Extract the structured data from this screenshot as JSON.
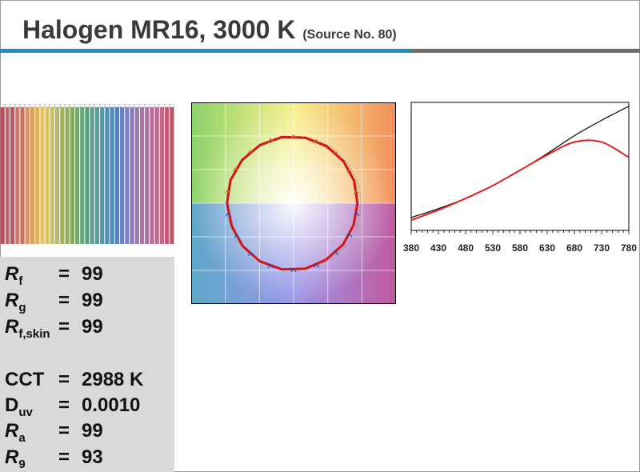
{
  "header": {
    "title": "Halogen MR16, 3000 K",
    "subtitle": "(Source No. 80)"
  },
  "swatch_colors": [
    "#c44a5e",
    "#c9646a",
    "#b85a60",
    "#d4786a",
    "#c8725a",
    "#d6966a",
    "#dca05e",
    "#e2b25a",
    "#e8c266",
    "#dcc05a",
    "#c8c25c",
    "#b8b86a",
    "#a4b25a",
    "#94ae66",
    "#86a85c",
    "#78a872",
    "#6aa67a",
    "#5aa07a",
    "#5aa494",
    "#52a0a0",
    "#4e98a8",
    "#4a90b2",
    "#5088b8",
    "#5a80bc",
    "#6a80c0",
    "#7a80c0",
    "#8a7ab8",
    "#9a78b4",
    "#a874ae",
    "#b070a6",
    "#b86c9c",
    "#bc6a90",
    "#c06888",
    "#c45c74",
    "#bc5468"
  ],
  "metrics": {
    "rf": {
      "label": "R",
      "sub": "f",
      "eq": "=",
      "value": "99"
    },
    "rg": {
      "label": "R",
      "sub": "g",
      "eq": "=",
      "value": "99"
    },
    "rfs": {
      "label": "R",
      "sub": "f,skin",
      "eq": "=",
      "value": "99"
    },
    "cct": {
      "label": "CCT",
      "eq": "=",
      "value": "2988 K"
    },
    "duv": {
      "label": "D",
      "sub": "uv",
      "eq": "=",
      "value": "0.0010"
    },
    "ra": {
      "label": "R",
      "sub": "a",
      "eq": "=",
      "value": "99"
    },
    "r9": {
      "label": "R",
      "sub": "9",
      "eq": "=",
      "value": "93"
    }
  },
  "chart_data": [
    {
      "type": "line",
      "chart": "color vector graphic",
      "series": [
        {
          "values_deg_radius": [
            [
              0,
              0.95
            ],
            [
              20,
              0.96
            ],
            [
              40,
              0.97
            ],
            [
              60,
              0.98
            ],
            [
              80,
              0.99
            ],
            [
              100,
              1.0
            ],
            [
              120,
              1.0
            ],
            [
              140,
              1.0
            ],
            [
              160,
              1.0
            ],
            [
              180,
              0.99
            ],
            [
              200,
              0.98
            ],
            [
              220,
              0.99
            ],
            [
              240,
              1.0
            ],
            [
              260,
              1.0
            ],
            [
              280,
              0.99
            ],
            [
              300,
              0.97
            ],
            [
              320,
              0.96
            ],
            [
              340,
              0.95
            ],
            [
              360,
              0.95
            ]
          ]
        }
      ],
      "grid": true
    },
    {
      "type": "line",
      "x": [
        380,
        430,
        480,
        530,
        580,
        630,
        680,
        730,
        780
      ],
      "xticks": [
        "380",
        "430",
        "480",
        "530",
        "580",
        "630",
        "680",
        "730",
        "780"
      ],
      "xlim": [
        380,
        780
      ],
      "series": [
        {
          "color": "#000000",
          "values": [
            0.1,
            0.17,
            0.25,
            0.35,
            0.47,
            0.6,
            0.74,
            0.86,
            0.97
          ]
        },
        {
          "color": "#e02020",
          "values": [
            0.08,
            0.16,
            0.25,
            0.35,
            0.47,
            0.59,
            0.69,
            0.69,
            0.57
          ]
        }
      ]
    }
  ]
}
